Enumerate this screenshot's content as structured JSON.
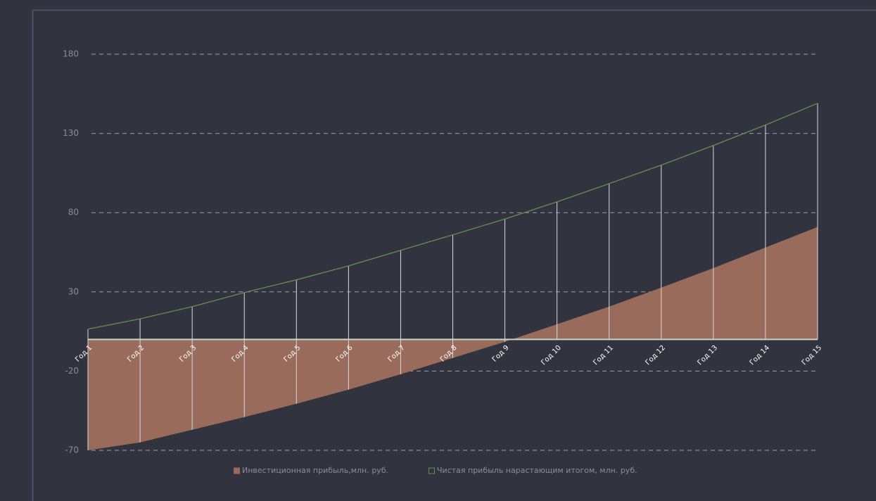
{
  "chart_data": {
    "type": "area",
    "categories": [
      "Год 1",
      "Год 2",
      "Год 3",
      "Год 4",
      "Год 5",
      "Год 6",
      "Год 7",
      "Год 8",
      "Год 9",
      "Год 10",
      "Год 11",
      "Год 12",
      "Год 13",
      "Год 14",
      "Год 15"
    ],
    "series": [
      {
        "name": "Инвестиционная прибыль,млн. руб.",
        "type": "area",
        "color": "#996b5a",
        "values": [
          -70,
          -65,
          -57,
          -49,
          -40.6,
          -31.7,
          -22,
          -11.7,
          -1.5,
          9.6,
          20.7,
          32.7,
          45,
          58,
          71
        ]
      },
      {
        "name": "Чистая прибыль нарастающим итогом, млн. руб.",
        "type": "line",
        "color": "#6e8a4c",
        "values": [
          6.5,
          13,
          20.7,
          29.6,
          37.6,
          46.4,
          56.2,
          66,
          76,
          86.8,
          98.3,
          110,
          122.4,
          135.3,
          149
        ]
      }
    ],
    "ylim": [
      -70,
      180
    ],
    "yticks": [
      -70,
      -20,
      30,
      80,
      130,
      180
    ],
    "grid": true
  }
}
